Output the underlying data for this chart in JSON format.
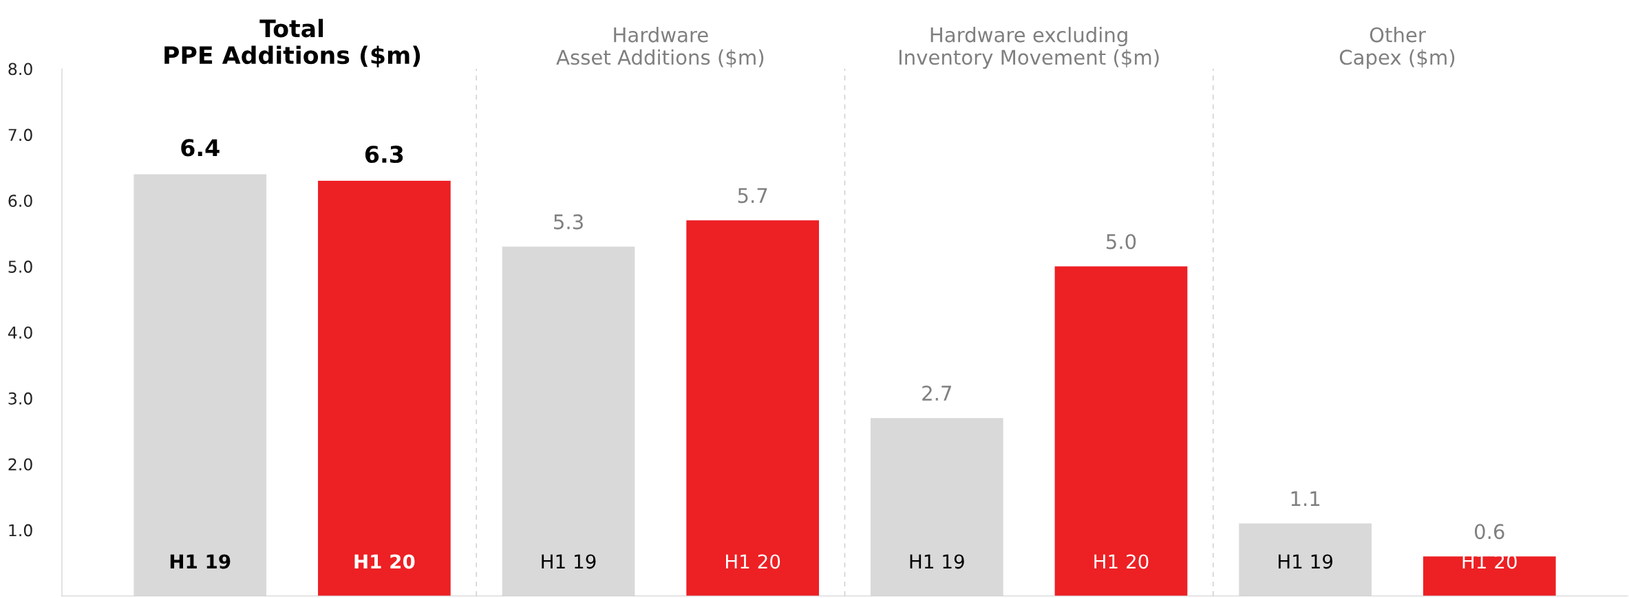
{
  "chart_data": {
    "type": "bar",
    "categories": [
      "H1 19",
      "H1 20",
      "H1 19",
      "H1 20",
      "H1 19",
      "H1 20",
      "H1 19",
      "H1 20"
    ],
    "values": [
      6.4,
      6.3,
      5.3,
      5.7,
      2.7,
      5.0,
      1.1,
      0.6
    ],
    "colors": [
      "#d9d9d9",
      "#ed2024",
      "#d9d9d9",
      "#ed2024",
      "#d9d9d9",
      "#ed2024",
      "#d9d9d9",
      "#ed2024"
    ],
    "ylim": [
      0,
      8
    ],
    "yticks": [
      {
        "value": 0,
        "label": null
      },
      {
        "value": 1,
        "label": "1.0"
      },
      {
        "value": 2,
        "label": "2.0"
      },
      {
        "value": 3,
        "label": "3.0"
      },
      {
        "value": 4,
        "label": "4.0"
      },
      {
        "value": 5,
        "label": "5.0"
      },
      {
        "value": 6,
        "label": "6.0"
      },
      {
        "value": 7,
        "label": "7.0"
      },
      {
        "value": 8,
        "label": "8.0"
      }
    ],
    "annotations": [
      "Total\nPPE Additions ($m)",
      "Hardware\nAsset Additions ($m)",
      "Hardware excluding\nInventory Movement ($m)",
      "Other\nCapex ($m)"
    ],
    "value_labels": [
      "6.4",
      "6.3",
      "5.3",
      "5.7",
      "2.7",
      "5.0",
      "1.1",
      "0.6"
    ],
    "grid": false,
    "legend": false
  }
}
